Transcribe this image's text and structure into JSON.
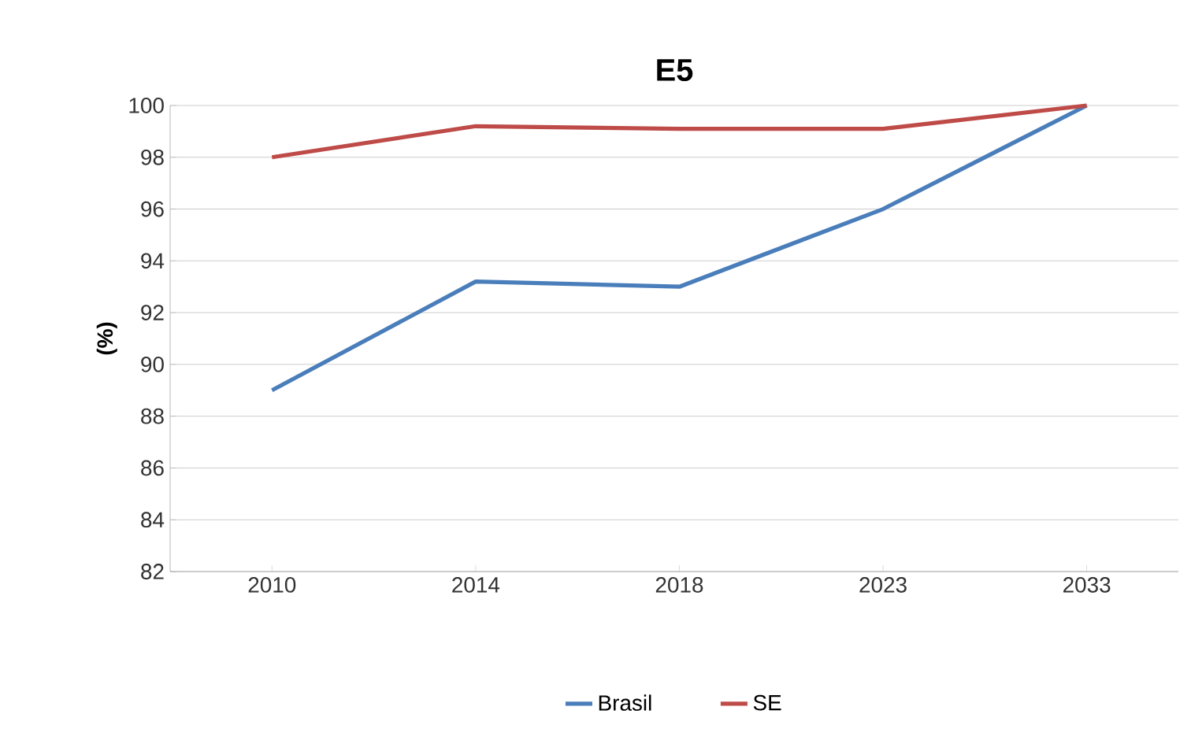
{
  "chart_data": {
    "type": "line",
    "title": "E5",
    "ylabel": "(%)",
    "categories": [
      "2010",
      "2014",
      "2018",
      "2023",
      "2033"
    ],
    "series": [
      {
        "name": "Brasil",
        "color": "#4a7ebb",
        "values": [
          89,
          93.2,
          93,
          96,
          100
        ]
      },
      {
        "name": "SE",
        "color": "#be4b48",
        "values": [
          98,
          99.2,
          99.1,
          99.1,
          100
        ]
      }
    ],
    "ylim": [
      82,
      100
    ],
    "yticks": [
      82,
      84,
      86,
      88,
      90,
      92,
      94,
      96,
      98,
      100
    ],
    "grid": "y",
    "legend": "bottom"
  }
}
